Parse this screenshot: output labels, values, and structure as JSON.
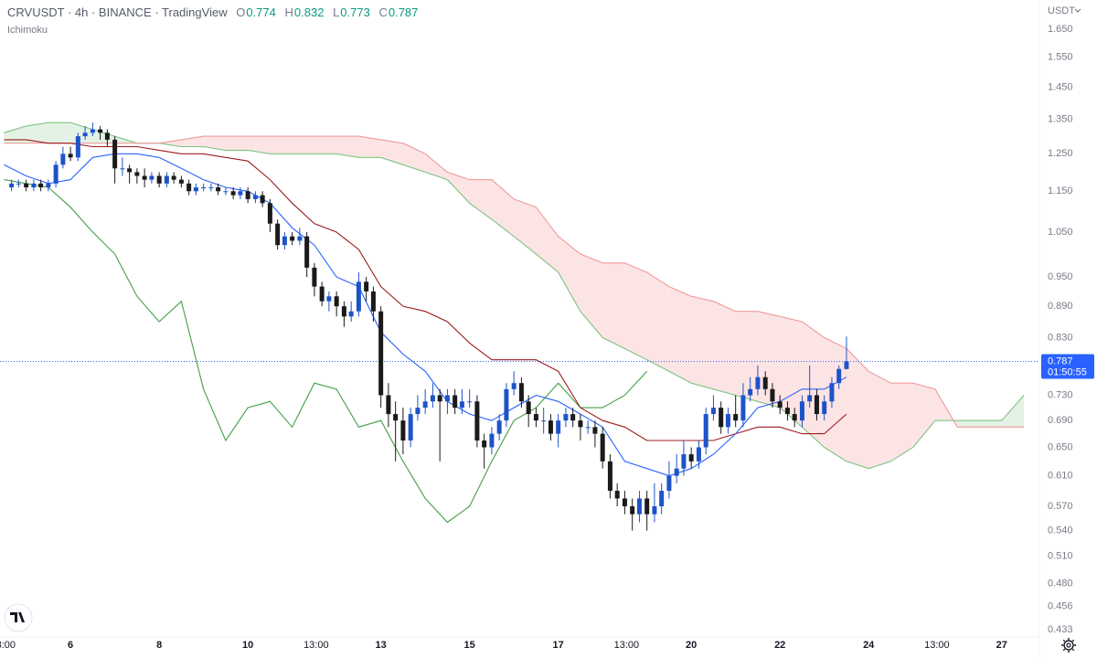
{
  "chart_data": {
    "type": "candlestick",
    "title": "CRVUSDT · 4h · BINANCE · TradingView",
    "indicator": "Ichimoku",
    "currency": "USDT",
    "ohlc_labels": [
      "O",
      "H",
      "L",
      "C"
    ],
    "countdown": "01:50:55",
    "log_scale": true,
    "grid": false,
    "ylim": [
      0.426,
      1.761
    ],
    "yticks": [
      {
        "value": 1.65,
        "label": "1.650"
      },
      {
        "value": 1.55,
        "label": "1.550"
      },
      {
        "value": 1.45,
        "label": "1.450"
      },
      {
        "value": 1.35,
        "label": "1.350"
      },
      {
        "value": 1.25,
        "label": "1.250"
      },
      {
        "value": 1.15,
        "label": "1.150"
      },
      {
        "value": 1.05,
        "label": "1.050"
      },
      {
        "value": 0.95,
        "label": "0.950"
      },
      {
        "value": 0.89,
        "label": "0.890"
      },
      {
        "value": 0.83,
        "label": "0.830"
      },
      {
        "value": 0.73,
        "label": "0.730"
      },
      {
        "value": 0.69,
        "label": "0.690"
      },
      {
        "value": 0.65,
        "label": "0.650"
      },
      {
        "value": 0.61,
        "label": "0.610"
      },
      {
        "value": 0.57,
        "label": "0.570"
      },
      {
        "value": 0.54,
        "label": "0.540"
      },
      {
        "value": 0.51,
        "label": "0.510"
      },
      {
        "value": 0.48,
        "label": "0.480"
      },
      {
        "value": 0.456,
        "label": "0.456"
      },
      {
        "value": 0.433,
        "label": "0.433"
      }
    ],
    "xlim": [
      4.41,
      27.81
    ],
    "xticks": [
      {
        "value": 4.54,
        "label": "3:00"
      },
      6,
      8,
      10,
      {
        "value": 11.54,
        "label": "13:00"
      },
      13,
      15,
      17,
      {
        "value": 18.54,
        "label": "13:00"
      },
      20,
      22,
      24,
      {
        "value": 25.54,
        "label": "13:00"
      },
      27
    ],
    "candles": {
      "up_color": "#1e53c8",
      "down_color": "#1a1a1a",
      "x": [
        4.67,
        4.83,
        5,
        5.17,
        5.33,
        5.5,
        5.67,
        5.83,
        6,
        6.17,
        6.33,
        6.5,
        6.67,
        6.83,
        7,
        7.17,
        7.33,
        7.5,
        7.67,
        7.83,
        8,
        8.17,
        8.33,
        8.5,
        8.67,
        8.83,
        9,
        9.17,
        9.33,
        9.5,
        9.67,
        9.83,
        10,
        10.17,
        10.33,
        10.5,
        10.67,
        10.83,
        11,
        11.17,
        11.33,
        11.5,
        11.67,
        11.83,
        12,
        12.17,
        12.33,
        12.5,
        12.67,
        12.83,
        13,
        13.17,
        13.33,
        13.5,
        13.67,
        13.83,
        14,
        14.17,
        14.33,
        14.5,
        14.67,
        14.83,
        15,
        15.17,
        15.33,
        15.5,
        15.67,
        15.83,
        16,
        16.17,
        16.33,
        16.5,
        16.67,
        16.83,
        17,
        17.17,
        17.33,
        17.5,
        17.67,
        17.83,
        18,
        18.17,
        18.33,
        18.5,
        18.67,
        18.83,
        19,
        19.17,
        19.33,
        19.5,
        19.67,
        19.83,
        20,
        20.17,
        20.33,
        20.5,
        20.67,
        20.83,
        21,
        21.17,
        21.33,
        21.5,
        21.67,
        21.83,
        22,
        22.17,
        22.33,
        22.5,
        22.67,
        22.83,
        23,
        23.17,
        23.33,
        23.5
      ],
      "open": [
        1.16,
        1.17,
        1.17,
        1.16,
        1.17,
        1.16,
        1.17,
        1.22,
        1.25,
        1.24,
        1.3,
        1.31,
        1.32,
        1.31,
        1.29,
        1.21,
        1.21,
        1.2,
        1.19,
        1.18,
        1.19,
        1.17,
        1.19,
        1.18,
        1.17,
        1.15,
        1.16,
        1.16,
        1.16,
        1.15,
        1.15,
        1.14,
        1.15,
        1.13,
        1.14,
        1.12,
        1.07,
        1.02,
        1.04,
        1.03,
        1.04,
        0.97,
        0.93,
        0.9,
        0.91,
        0.89,
        0.87,
        0.88,
        0.94,
        0.92,
        0.88,
        0.73,
        0.7,
        0.69,
        0.66,
        0.7,
        0.71,
        0.72,
        0.73,
        0.72,
        0.73,
        0.71,
        0.72,
        0.72,
        0.66,
        0.65,
        0.67,
        0.69,
        0.74,
        0.75,
        0.72,
        0.7,
        0.69,
        0.69,
        0.67,
        0.69,
        0.7,
        0.69,
        0.68,
        0.68,
        0.67,
        0.63,
        0.59,
        0.58,
        0.57,
        0.56,
        0.58,
        0.56,
        0.57,
        0.59,
        0.61,
        0.62,
        0.64,
        0.63,
        0.65,
        0.7,
        0.71,
        0.68,
        0.7,
        0.69,
        0.73,
        0.74,
        0.76,
        0.74,
        0.72,
        0.71,
        0.7,
        0.69,
        0.72,
        0.73,
        0.7,
        0.72,
        0.75,
        0.774
      ],
      "high": [
        1.18,
        1.18,
        1.18,
        1.18,
        1.18,
        1.18,
        1.23,
        1.27,
        1.27,
        1.31,
        1.33,
        1.34,
        1.33,
        1.32,
        1.3,
        1.24,
        1.22,
        1.21,
        1.21,
        1.2,
        1.2,
        1.2,
        1.2,
        1.19,
        1.18,
        1.17,
        1.17,
        1.17,
        1.17,
        1.16,
        1.16,
        1.16,
        1.16,
        1.15,
        1.15,
        1.13,
        1.08,
        1.05,
        1.05,
        1.06,
        1.05,
        0.98,
        0.94,
        0.92,
        0.92,
        0.9,
        0.9,
        0.96,
        0.95,
        0.93,
        0.89,
        0.75,
        0.72,
        0.71,
        0.71,
        0.73,
        0.74,
        0.75,
        0.74,
        0.74,
        0.74,
        0.74,
        0.74,
        0.73,
        0.67,
        0.68,
        0.7,
        0.75,
        0.77,
        0.76,
        0.73,
        0.71,
        0.71,
        0.7,
        0.7,
        0.71,
        0.71,
        0.7,
        0.69,
        0.69,
        0.68,
        0.64,
        0.6,
        0.59,
        0.58,
        0.59,
        0.59,
        0.6,
        0.6,
        0.63,
        0.64,
        0.66,
        0.65,
        0.66,
        0.71,
        0.73,
        0.72,
        0.71,
        0.73,
        0.75,
        0.76,
        0.78,
        0.77,
        0.75,
        0.73,
        0.72,
        0.71,
        0.73,
        0.78,
        0.74,
        0.73,
        0.76,
        0.78,
        0.832
      ],
      "low": [
        1.15,
        1.16,
        1.15,
        1.15,
        1.15,
        1.15,
        1.16,
        1.21,
        1.23,
        1.23,
        1.29,
        1.3,
        1.29,
        1.27,
        1.17,
        1.19,
        1.17,
        1.17,
        1.16,
        1.17,
        1.16,
        1.16,
        1.17,
        1.16,
        1.14,
        1.14,
        1.15,
        1.15,
        1.14,
        1.14,
        1.13,
        1.13,
        1.12,
        1.12,
        1.11,
        1.05,
        1.01,
        1.01,
        1.02,
        1.02,
        0.95,
        0.91,
        0.89,
        0.88,
        0.87,
        0.85,
        0.86,
        0.87,
        0.9,
        0.86,
        0.71,
        0.68,
        0.63,
        0.64,
        0.65,
        0.69,
        0.7,
        0.71,
        0.63,
        0.7,
        0.7,
        0.7,
        0.71,
        0.65,
        0.62,
        0.64,
        0.66,
        0.68,
        0.73,
        0.71,
        0.68,
        0.68,
        0.67,
        0.66,
        0.65,
        0.68,
        0.68,
        0.66,
        0.67,
        0.65,
        0.62,
        0.58,
        0.57,
        0.56,
        0.54,
        0.55,
        0.54,
        0.55,
        0.56,
        0.58,
        0.6,
        0.61,
        0.62,
        0.62,
        0.64,
        0.69,
        0.67,
        0.67,
        0.68,
        0.68,
        0.72,
        0.73,
        0.73,
        0.71,
        0.7,
        0.69,
        0.68,
        0.68,
        0.71,
        0.69,
        0.69,
        0.71,
        0.74,
        0.773
      ],
      "close": [
        1.17,
        1.17,
        1.16,
        1.17,
        1.16,
        1.17,
        1.22,
        1.25,
        1.24,
        1.3,
        1.31,
        1.32,
        1.31,
        1.29,
        1.21,
        1.21,
        1.2,
        1.19,
        1.18,
        1.19,
        1.17,
        1.19,
        1.18,
        1.17,
        1.15,
        1.16,
        1.16,
        1.16,
        1.15,
        1.15,
        1.14,
        1.15,
        1.13,
        1.14,
        1.12,
        1.07,
        1.02,
        1.04,
        1.03,
        1.04,
        0.97,
        0.93,
        0.9,
        0.91,
        0.89,
        0.87,
        0.88,
        0.94,
        0.92,
        0.88,
        0.73,
        0.7,
        0.69,
        0.66,
        0.7,
        0.71,
        0.72,
        0.73,
        0.72,
        0.73,
        0.71,
        0.72,
        0.72,
        0.66,
        0.65,
        0.67,
        0.69,
        0.74,
        0.75,
        0.72,
        0.7,
        0.69,
        0.69,
        0.67,
        0.69,
        0.7,
        0.69,
        0.68,
        0.68,
        0.67,
        0.63,
        0.59,
        0.58,
        0.57,
        0.56,
        0.58,
        0.56,
        0.57,
        0.59,
        0.61,
        0.62,
        0.64,
        0.63,
        0.65,
        0.7,
        0.71,
        0.68,
        0.7,
        0.69,
        0.73,
        0.74,
        0.76,
        0.74,
        0.72,
        0.71,
        0.7,
        0.69,
        0.72,
        0.73,
        0.7,
        0.72,
        0.75,
        0.774,
        0.787
      ]
    },
    "ichimoku": {
      "cloud_up_color": "#e4f2e5",
      "cloud_down_color": "#fde4e4",
      "span_a": {
        "color": "#7cc47f",
        "x": [
          4.5,
          5,
          5.5,
          6,
          6.5,
          7,
          7.5,
          8,
          8.5,
          9,
          9.5,
          10,
          10.5,
          11,
          11.5,
          12,
          12.5,
          13,
          13.5,
          14,
          14.5,
          15,
          15.5,
          16,
          16.5,
          17,
          17.5,
          18,
          18.5,
          19,
          19.5,
          20,
          20.5,
          21,
          21.5,
          22,
          22.5,
          23,
          23.5,
          24,
          24.5,
          25,
          25.5,
          26,
          26.5,
          27,
          27.5
        ],
        "values": [
          1.31,
          1.33,
          1.34,
          1.34,
          1.32,
          1.3,
          1.28,
          1.28,
          1.27,
          1.27,
          1.26,
          1.26,
          1.25,
          1.25,
          1.25,
          1.25,
          1.24,
          1.24,
          1.22,
          1.2,
          1.18,
          1.12,
          1.08,
          1.04,
          1.0,
          0.96,
          0.88,
          0.83,
          0.81,
          0.79,
          0.77,
          0.75,
          0.74,
          0.73,
          0.72,
          0.71,
          0.68,
          0.65,
          0.63,
          0.62,
          0.63,
          0.65,
          0.69,
          0.69,
          0.69,
          0.69,
          0.73
        ]
      },
      "span_b": {
        "color": "#ee9b9b",
        "x": [
          4.5,
          5,
          5.5,
          6,
          6.5,
          7,
          7.5,
          8,
          8.5,
          9,
          9.5,
          10,
          10.5,
          11,
          11.5,
          12,
          12.5,
          13,
          13.5,
          14,
          14.5,
          15,
          15.5,
          16,
          16.5,
          17,
          17.5,
          18,
          18.5,
          19,
          19.5,
          20,
          20.5,
          21,
          21.5,
          22,
          22.5,
          23,
          23.5,
          24,
          24.5,
          25,
          25.5,
          26,
          26.5,
          27,
          27.5
        ],
        "values": [
          1.28,
          1.28,
          1.28,
          1.28,
          1.28,
          1.28,
          1.28,
          1.28,
          1.29,
          1.3,
          1.3,
          1.3,
          1.3,
          1.3,
          1.3,
          1.3,
          1.3,
          1.29,
          1.28,
          1.25,
          1.2,
          1.18,
          1.18,
          1.13,
          1.11,
          1.04,
          1.0,
          0.98,
          0.98,
          0.96,
          0.93,
          0.91,
          0.9,
          0.88,
          0.88,
          0.87,
          0.86,
          0.83,
          0.81,
          0.77,
          0.75,
          0.75,
          0.74,
          0.68,
          0.68,
          0.68,
          0.68
        ]
      },
      "conversion": {
        "color": "#2962ff",
        "x": [
          4.5,
          5,
          5.5,
          6,
          6.5,
          7,
          7.5,
          8,
          8.5,
          9,
          9.5,
          10,
          10.5,
          11,
          11.5,
          12,
          12.5,
          13,
          13.5,
          14,
          14.5,
          15,
          15.5,
          16,
          16.5,
          17,
          17.5,
          18,
          18.5,
          19,
          19.5,
          20,
          20.5,
          21,
          21.5,
          22,
          22.5,
          23,
          23.5
        ],
        "values": [
          1.22,
          1.19,
          1.17,
          1.18,
          1.24,
          1.25,
          1.25,
          1.24,
          1.21,
          1.18,
          1.16,
          1.15,
          1.12,
          1.06,
          1.02,
          0.95,
          0.93,
          0.84,
          0.8,
          0.77,
          0.72,
          0.7,
          0.69,
          0.71,
          0.73,
          0.72,
          0.7,
          0.68,
          0.63,
          0.62,
          0.61,
          0.62,
          0.64,
          0.67,
          0.71,
          0.72,
          0.74,
          0.74,
          0.76
        ]
      },
      "base": {
        "color": "#9c1c1c",
        "x": [
          4.5,
          5,
          5.5,
          6,
          6.5,
          7,
          7.5,
          8,
          8.5,
          9,
          9.5,
          10,
          10.5,
          11,
          11.5,
          12,
          12.5,
          13,
          13.5,
          14,
          14.5,
          15,
          15.5,
          16,
          16.5,
          17,
          17.5,
          18,
          18.5,
          19,
          19.5,
          20,
          20.5,
          21,
          21.5,
          22,
          22.5,
          23,
          23.5
        ],
        "values": [
          1.29,
          1.29,
          1.28,
          1.28,
          1.27,
          1.27,
          1.27,
          1.26,
          1.25,
          1.25,
          1.24,
          1.23,
          1.18,
          1.12,
          1.07,
          1.05,
          1.01,
          0.93,
          0.89,
          0.88,
          0.86,
          0.82,
          0.79,
          0.79,
          0.79,
          0.77,
          0.71,
          0.69,
          0.68,
          0.66,
          0.66,
          0.66,
          0.66,
          0.67,
          0.68,
          0.68,
          0.67,
          0.67,
          0.7
        ]
      },
      "lagging": {
        "color": "#43a047",
        "x": [
          4.5,
          5,
          5.5,
          6,
          6.5,
          7,
          7.5,
          8,
          8.5,
          9,
          9.5,
          10,
          10.5,
          11,
          11.5,
          12,
          12.5,
          13,
          13.5,
          14,
          14.5,
          15,
          15.5,
          16,
          16.5,
          17,
          17.5,
          18,
          18.5,
          19
        ],
        "values": [
          1.18,
          1.17,
          1.16,
          1.11,
          1.05,
          1.0,
          0.91,
          0.86,
          0.9,
          0.74,
          0.66,
          0.71,
          0.72,
          0.68,
          0.75,
          0.74,
          0.68,
          0.69,
          0.63,
          0.58,
          0.55,
          0.57,
          0.63,
          0.69,
          0.71,
          0.75,
          0.71,
          0.71,
          0.73,
          0.77
        ]
      }
    }
  }
}
